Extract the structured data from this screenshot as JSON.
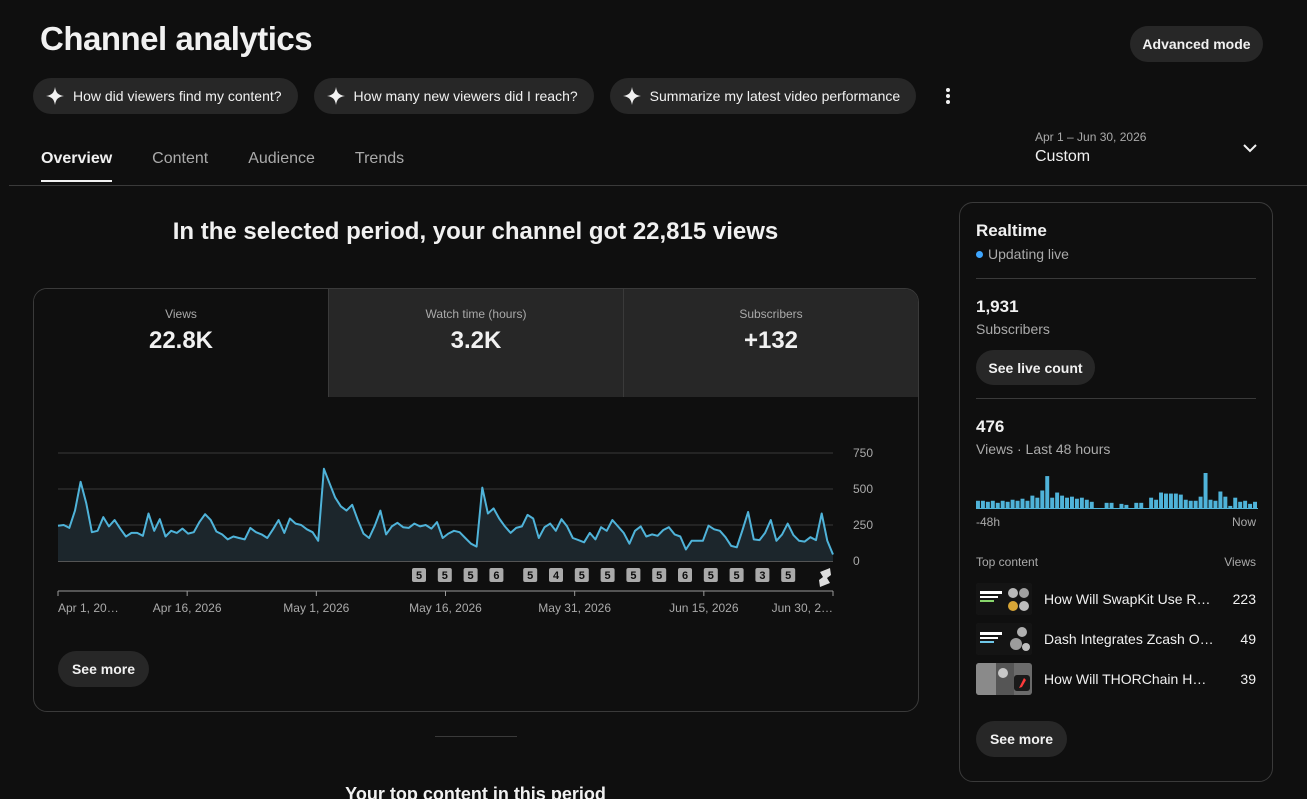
{
  "header": {
    "title": "Channel analytics",
    "advanced_mode_label": "Advanced mode"
  },
  "chips": [
    {
      "label": "How did viewers find my content?"
    },
    {
      "label": "How many new viewers did I reach?"
    },
    {
      "label": "Summarize my latest video performance"
    }
  ],
  "tabs": [
    {
      "label": "Overview",
      "active": true
    },
    {
      "label": "Content",
      "active": false
    },
    {
      "label": "Audience",
      "active": false
    },
    {
      "label": "Trends",
      "active": false
    }
  ],
  "date_selector": {
    "range": "Apr 1 – Jun 30, 2026",
    "preset": "Custom"
  },
  "overview": {
    "headline": "In the selected period, your channel got 22,815 views",
    "metrics": [
      {
        "label": "Views",
        "value": "22.8K",
        "selected": true
      },
      {
        "label": "Watch time (hours)",
        "value": "3.2K",
        "selected": false
      },
      {
        "label": "Subscribers",
        "value": "+132",
        "selected": false
      }
    ],
    "see_more_label": "See more"
  },
  "chart_data": {
    "type": "area",
    "series": [
      {
        "name": "Views",
        "values": [
          245,
          250,
          230,
          350,
          550,
          400,
          200,
          210,
          305,
          240,
          285,
          225,
          170,
          195,
          195,
          175,
          330,
          210,
          290,
          170,
          210,
          195,
          225,
          190,
          200,
          270,
          325,
          285,
          205,
          185,
          150,
          170,
          160,
          150,
          230,
          200,
          185,
          160,
          220,
          285,
          195,
          295,
          260,
          250,
          220,
          200,
          140,
          640,
          540,
          440,
          380,
          350,
          390,
          285,
          190,
          160,
          245,
          350,
          185,
          240,
          265,
          235,
          230,
          260,
          240,
          250,
          225,
          270,
          160,
          190,
          210,
          200,
          160,
          120,
          100,
          510,
          330,
          365,
          295,
          240,
          195,
          230,
          240,
          320,
          295,
          160,
          235,
          260,
          210,
          290,
          240,
          160,
          145,
          130,
          195,
          150,
          235,
          210,
          285,
          240,
          195,
          120,
          210,
          240,
          170,
          185,
          175,
          215,
          235,
          185,
          170,
          80,
          140,
          140,
          140,
          245,
          220,
          210,
          165,
          105,
          95,
          215,
          340,
          150,
          145,
          195,
          285,
          140,
          185,
          260,
          180,
          140,
          135,
          165,
          145,
          330,
          140,
          45
        ]
      }
    ],
    "y_ticks": [
      0,
      250,
      500,
      750
    ],
    "ylim": [
      0,
      750
    ],
    "x_ticks": [
      "Apr 1, 20…",
      "Apr 16, 2026",
      "May 1, 2026",
      "May 16, 2026",
      "May 31, 2026",
      "Jun 15, 2026",
      "Jun 30, 2…"
    ],
    "upload_markers": [
      "5",
      "5",
      "5",
      "6",
      "5",
      "4",
      "5",
      "5",
      "5",
      "5",
      "6",
      "5",
      "5",
      "3",
      "5"
    ],
    "colors": {
      "line": "#4fb3d9",
      "fill": "#1c262c",
      "grid": "#3a3a3a",
      "marker": "#aaaaaa"
    }
  },
  "realtime": {
    "title": "Realtime",
    "status": "Updating live",
    "subscribers_value": "1,931",
    "subscribers_label": "Subscribers",
    "see_live_count_label": "See live count",
    "views_value": "476",
    "views_label": "Views · Last 48 hours",
    "bars": [
      8,
      8,
      7,
      8,
      6,
      8,
      7,
      9,
      8,
      10,
      8,
      13,
      11,
      18,
      32,
      11,
      16,
      13,
      11,
      12,
      10,
      11,
      9,
      7,
      0,
      0,
      6,
      6,
      0,
      5,
      4,
      0,
      6,
      6,
      0,
      11,
      9,
      16,
      15,
      15,
      15,
      14,
      9,
      8,
      8,
      12,
      35,
      9,
      8,
      17,
      12,
      3,
      11,
      7,
      8,
      5,
      7
    ],
    "x_start": "-48h",
    "x_end": "Now",
    "top_content_label": "Top content",
    "views_column_label": "Views",
    "top_content": [
      {
        "title": "How Will SwapKit Use R…",
        "views": "223"
      },
      {
        "title": "Dash Integrates Zcash Or…",
        "views": "49"
      },
      {
        "title": "How Will THORChain Han…",
        "views": "39"
      }
    ],
    "see_more_label": "See more"
  },
  "bottom": {
    "section_title": "Your top content in this period"
  }
}
